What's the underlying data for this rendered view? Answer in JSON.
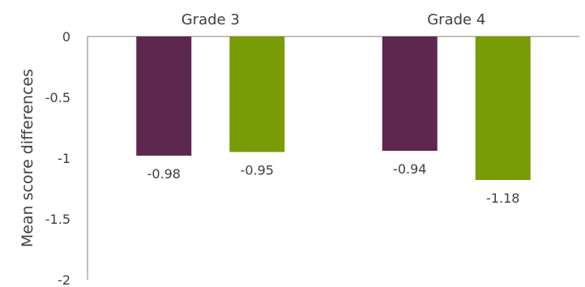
{
  "chart_data": {
    "type": "bar",
    "categories": [
      "Grade 3",
      "Grade 4"
    ],
    "series": [
      {
        "values": [
          -0.98,
          -0.94
        ]
      },
      {
        "values": [
          -0.95,
          -1.18
        ]
      }
    ],
    "value_labels": [
      [
        "-0.98",
        "-0.94"
      ],
      [
        "-0.95",
        "-1.18"
      ]
    ],
    "ylabel": "Mean score differences",
    "ylim": [
      -2,
      0
    ],
    "yticks": [
      {
        "value": 0,
        "label": "0"
      },
      {
        "value": -0.5,
        "label": "-0.5"
      },
      {
        "value": -1,
        "label": "-1"
      },
      {
        "value": -1.5,
        "label": "-1.5"
      },
      {
        "value": -2,
        "label": "-2"
      }
    ],
    "x_axis_position": "top",
    "category_labels_position": "top",
    "grid": false,
    "legend": "none",
    "colors": [
      "#5e2750",
      "#789b06"
    ]
  }
}
